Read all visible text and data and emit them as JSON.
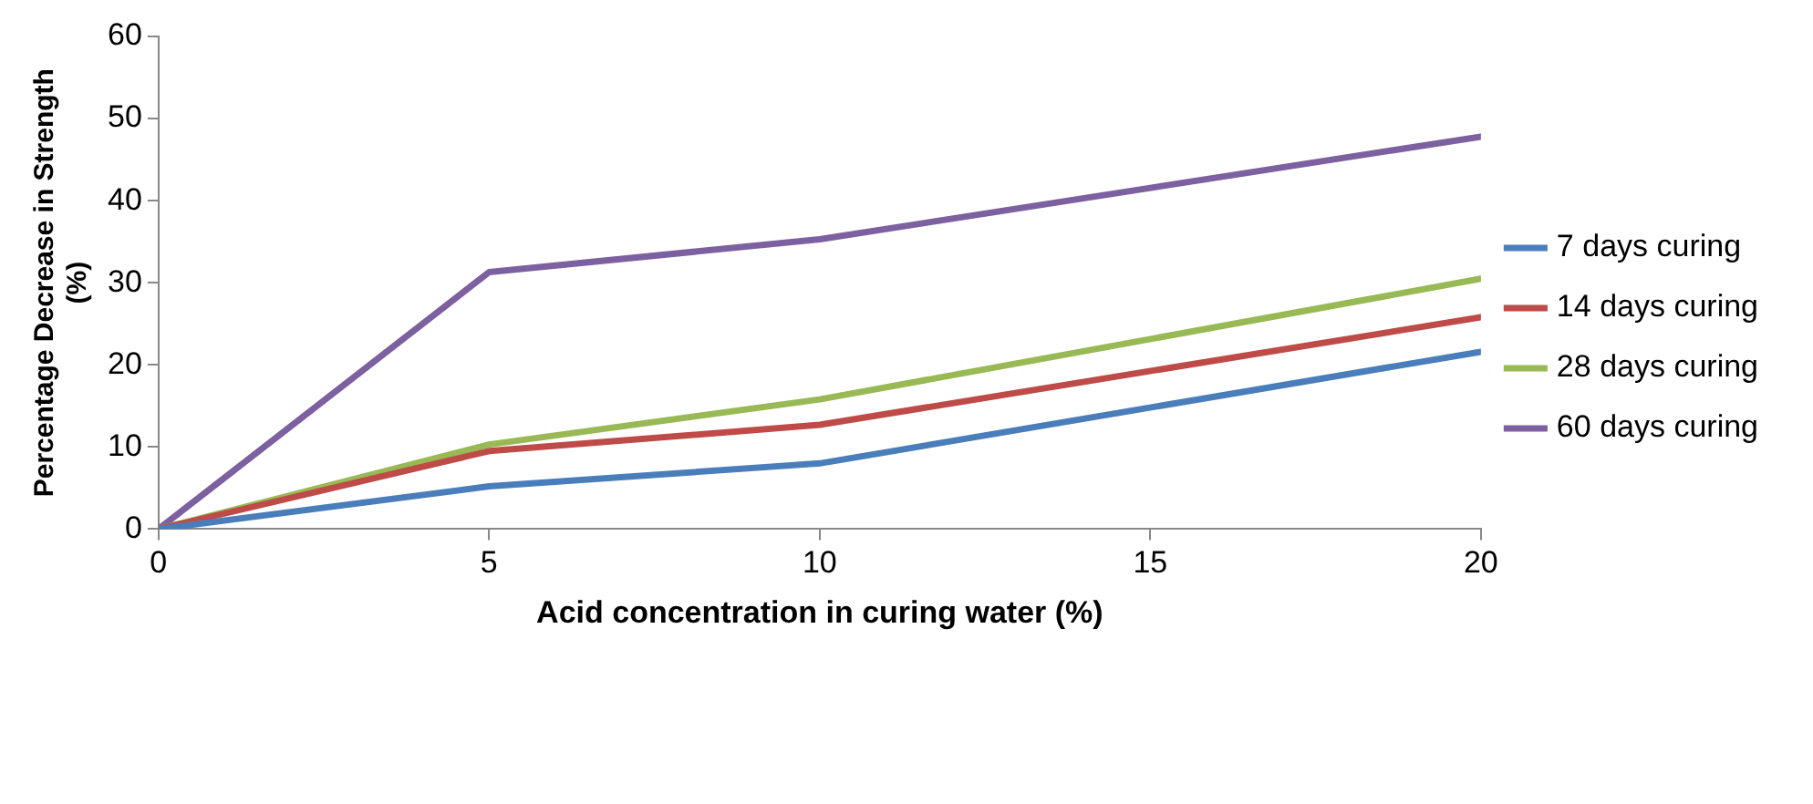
{
  "chart_data": {
    "type": "line",
    "xlabel": "Acid concentration in curing water (%)",
    "ylabel": "Percentage Decrease in Strength (%)",
    "x": [
      0,
      5,
      10,
      20
    ],
    "series": [
      {
        "name": "7 days curing",
        "color": "#4a7ebb",
        "values": [
          0,
          5.2,
          8,
          21.6
        ]
      },
      {
        "name": "14 days curing",
        "color": "#be4b48",
        "values": [
          0,
          9.5,
          12.7,
          25.8
        ]
      },
      {
        "name": "28 days curing",
        "color": "#98b954",
        "values": [
          0,
          10.3,
          15.8,
          30.5
        ]
      },
      {
        "name": "60 days curing",
        "color": "#7d60a0",
        "values": [
          0,
          31.3,
          35.3,
          47.8
        ]
      }
    ],
    "xlim": [
      0,
      20
    ],
    "xticks": [
      0,
      5,
      10,
      15,
      20
    ],
    "ylim": [
      0,
      60
    ],
    "yticks": [
      0,
      10,
      20,
      30,
      40,
      50,
      60
    ],
    "grid": false,
    "legend": "right",
    "marker": "none",
    "line_style": "solid"
  }
}
